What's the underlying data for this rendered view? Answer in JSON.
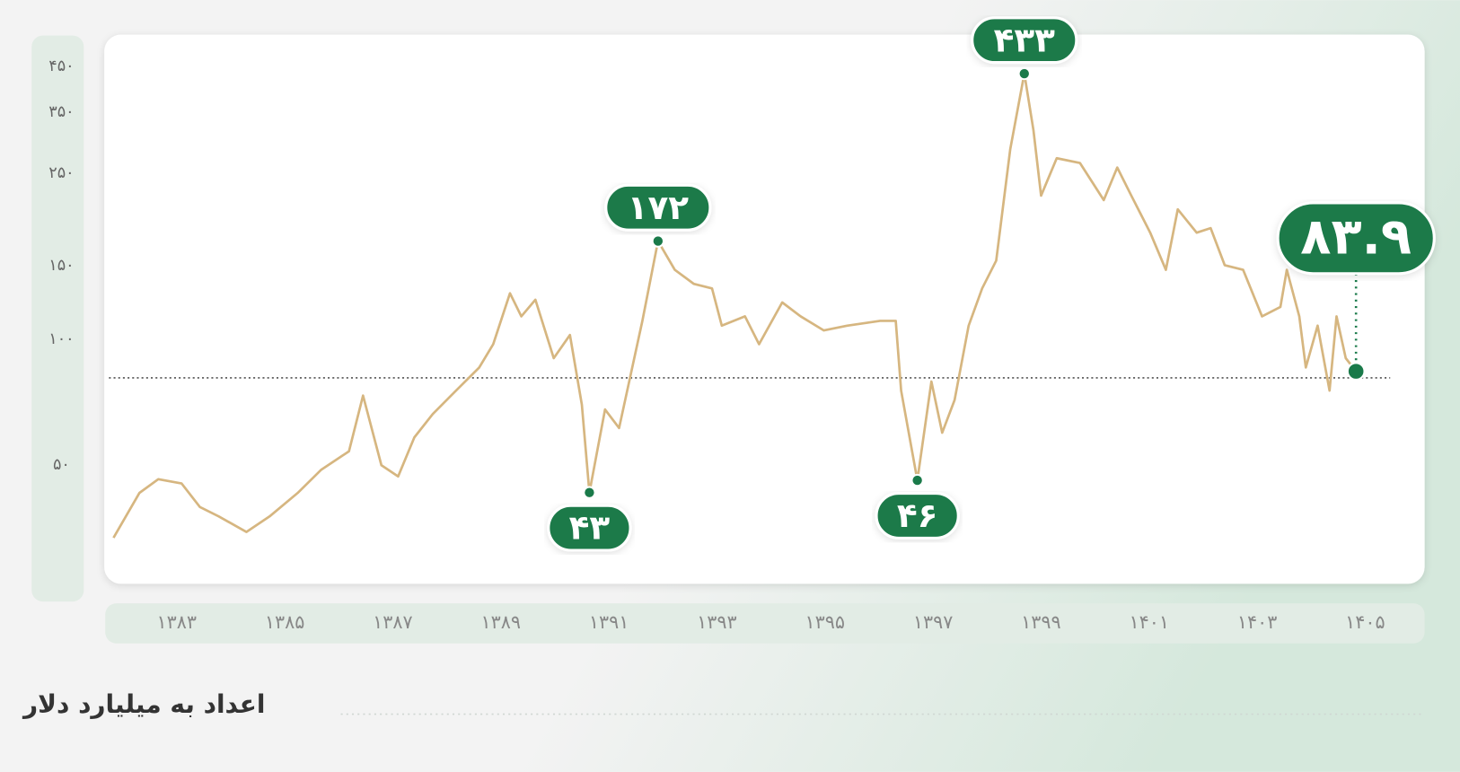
{
  "chart_data": {
    "type": "line",
    "unit_note": "اعداد به میلیارد دلار",
    "log_scale": true,
    "ylim": [
      26,
      537
    ],
    "yticks": [
      {
        "value": 50,
        "label": "۵۰"
      },
      {
        "value": 100,
        "label": "۱۰۰"
      },
      {
        "value": 150,
        "label": "۱۵۰"
      },
      {
        "value": 250,
        "label": "۲۵۰"
      },
      {
        "value": 350,
        "label": "۳۵۰"
      },
      {
        "value": 450,
        "label": "۴۵۰"
      }
    ],
    "xlim": [
      1381.66,
      1406.1
    ],
    "xticks": [
      {
        "value": 1383,
        "label": "۱۳۸۳"
      },
      {
        "value": 1385,
        "label": "۱۳۸۵"
      },
      {
        "value": 1387,
        "label": "۱۳۸۷"
      },
      {
        "value": 1389,
        "label": "۱۳۸۹"
      },
      {
        "value": 1391,
        "label": "۱۳۹۱"
      },
      {
        "value": 1393,
        "label": "۱۳۹۳"
      },
      {
        "value": 1395,
        "label": "۱۳۹۵"
      },
      {
        "value": 1397,
        "label": "۱۳۹۷"
      },
      {
        "value": 1399,
        "label": "۱۳۹۹"
      },
      {
        "value": 1401,
        "label": "۱۴۰۱"
      },
      {
        "value": 1403,
        "label": "۱۴۰۳"
      },
      {
        "value": 1405,
        "label": "۱۴۰۵"
      }
    ],
    "x": [
      1381.83,
      1382.31,
      1382.66,
      1383.09,
      1383.43,
      1383.78,
      1384.29,
      1384.72,
      1385.24,
      1385.67,
      1386.19,
      1386.45,
      1386.79,
      1387.1,
      1387.4,
      1387.74,
      1388.17,
      1388.6,
      1388.86,
      1389.17,
      1389.38,
      1389.64,
      1389.98,
      1390.28,
      1390.5,
      1390.64,
      1390.93,
      1391.19,
      1391.62,
      1391.91,
      1392.22,
      1392.57,
      1392.91,
      1393.09,
      1393.52,
      1393.78,
      1394.21,
      1394.55,
      1394.98,
      1395.41,
      1396.02,
      1396.31,
      1396.41,
      1396.71,
      1396.97,
      1397.17,
      1397.4,
      1397.66,
      1397.91,
      1398.17,
      1398.43,
      1398.69,
      1398.86,
      1399.0,
      1399.29,
      1399.72,
      1400.16,
      1400.41,
      1400.67,
      1401.02,
      1401.31,
      1401.53,
      1401.88,
      1402.14,
      1402.4,
      1402.74,
      1403.09,
      1403.43,
      1403.55,
      1403.78,
      1403.9,
      1404.12,
      1404.34,
      1404.47,
      1404.64,
      1404.83
    ],
    "series": [
      {
        "color": "#d6b680",
        "values": [
          33.5,
          42.9,
          46.3,
          45.2,
          39.7,
          37.7,
          34.6,
          37.7,
          42.9,
          48.7,
          54.0,
          73.4,
          50,
          47.0,
          58.3,
          66.3,
          75.4,
          85.7,
          97.4,
          129,
          113.6,
          124.5,
          90.2,
          102.5,
          69.8,
          43,
          68.0,
          61.4,
          110.8,
          172,
          146.8,
          135.9,
          132.5,
          107.9,
          113.6,
          97.4,
          122.7,
          113.6,
          105.1,
          107.9,
          110.8,
          110.8,
          75.4,
          46,
          79.3,
          59.8,
          71.6,
          107.9,
          132.5,
          154.5,
          285.7,
          433,
          317,
          221,
          271.6,
          264.6,
          215.6,
          258,
          221,
          180.2,
          146.8,
          204.9,
          180.2,
          184.8,
          150.6,
          146.8,
          113.6,
          119.6,
          146.8,
          113.6,
          85.7,
          107.9,
          75.4,
          113.6,
          90.2,
          83.9
        ],
        "value_labels": [
          null,
          null,
          null,
          null,
          null,
          null,
          null,
          null,
          null,
          null,
          null,
          null,
          null,
          null,
          null,
          null,
          null,
          null,
          null,
          null,
          null,
          null,
          null,
          null,
          null,
          "۴۳",
          null,
          null,
          null,
          "۱۷۲",
          null,
          null,
          null,
          null,
          null,
          null,
          null,
          null,
          null,
          null,
          null,
          null,
          null,
          "۴۶",
          null,
          null,
          null,
          null,
          null,
          null,
          null,
          "۴۳۳",
          null,
          null,
          null,
          null,
          null,
          null,
          null,
          null,
          null,
          null,
          null,
          null,
          null,
          null,
          null,
          null,
          null,
          null,
          null,
          null,
          null,
          null,
          null,
          "۸۳.۹"
        ]
      }
    ]
  }
}
